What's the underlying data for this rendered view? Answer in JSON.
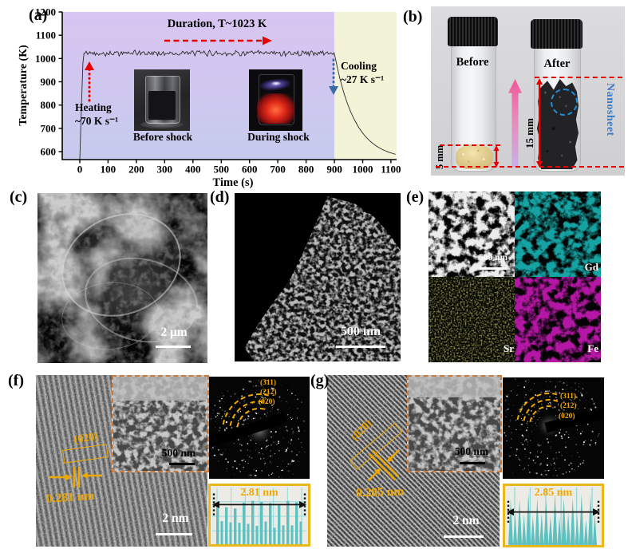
{
  "figure_type": "multi-panel scientific figure (thermal-shock synthesis of GdSrFeO nanosheets)",
  "chart_data": {
    "type": "line",
    "title": "",
    "xlabel": "Time (s)",
    "ylabel": "Temperature (K)",
    "xlim": [
      -62,
      1120
    ],
    "ylim": [
      566,
      1200
    ],
    "xticks": [
      0,
      100,
      200,
      300,
      400,
      500,
      600,
      700,
      800,
      900,
      1000,
      1100
    ],
    "yticks": [
      600,
      700,
      800,
      900,
      1000,
      1100,
      1200
    ],
    "grid": false,
    "legend": null,
    "series": [
      {
        "name": "temperature",
        "color": "#2a2a2a",
        "description": "Rapid heating at ~70 K/s to a noisy plateau at ~1023 K held until ~900 s, then exponential cooling at ~27 K/s back to ~570 K",
        "plateau_temp_K": 1023,
        "plateau_noise_K": 12,
        "heating_rate_K_per_s": 70,
        "cooling_rate_K_per_s": 27,
        "cooling_tau_s": 72,
        "key_points": [
          [
            0,
            566
          ],
          [
            8,
            850
          ],
          [
            15,
            1025
          ],
          [
            100,
            1023
          ],
          [
            300,
            1023
          ],
          [
            500,
            1023
          ],
          [
            700,
            1023
          ],
          [
            900,
            1023
          ],
          [
            950,
            800
          ],
          [
            1000,
            690
          ],
          [
            1050,
            630
          ],
          [
            1100,
            595
          ],
          [
            1118,
            580
          ]
        ]
      }
    ],
    "regions": [
      {
        "name": "shock-duration",
        "x0": -62,
        "x1": 900,
        "color_top": "#d8c5f1",
        "color_bottom": "#c5cbee"
      },
      {
        "name": "cooling",
        "x0": 900,
        "x1": 1120,
        "color": "#f3f3d8"
      }
    ]
  },
  "panels": {
    "a": {
      "label": "(a)",
      "duration_text": "Duration, T~1023 K",
      "heating_text_1": "Heating",
      "heating_text_2": "~70 K s⁻¹",
      "cooling_text_1": "Cooling",
      "cooling_text_2": "~27 K s⁻¹",
      "inset_before_caption": "Before shock",
      "inset_during_caption": "During shock"
    },
    "b": {
      "label": "(b)",
      "vial_left_label": "Before",
      "vial_right_label": "After",
      "height_left": "5 mm",
      "height_right": "15 mm",
      "product_label": "Nanosheet"
    },
    "c": {
      "label": "(c)",
      "scale_bar": "2 μm"
    },
    "d": {
      "label": "(d)",
      "scale_bar": "500 nm"
    },
    "e": {
      "label": "(e)",
      "scale_bar": "500 nm",
      "maps": [
        {
          "element": "Gd",
          "color": "#17a3a3"
        },
        {
          "element": "Sr",
          "color": "#8f9448"
        },
        {
          "element": "Fe",
          "color": "#b518a5"
        }
      ]
    },
    "f": {
      "label": "(f)",
      "plane": "(020)",
      "d_spacing": "0.281 nm",
      "scale_bar": "2 nm",
      "inset_scale_bar": "500 nm",
      "saed_rings": [
        "(311)",
        "(212)",
        "(020)"
      ],
      "profile_width": "2.81 nm"
    },
    "g": {
      "label": "(g)",
      "plane": "(020)",
      "d_spacing": "0.285 nm",
      "scale_bar": "2 nm",
      "inset_scale_bar": "500 nm",
      "saed_rings": [
        "(311)",
        "(212)",
        "(020)"
      ],
      "profile_width": "2.85 nm"
    }
  },
  "colors": {
    "annotation_yellow": "#f0a800",
    "annotation_red": "#e80000",
    "cooling_arrow_blue": "#3a6ca8",
    "nanosheet_blue": "#3a7ac8",
    "inset_border_orange": "#cc7a3a",
    "profile_border": "#e8b81c",
    "profile_bar": "#5fc0c0",
    "profile_grid": "#8fdede"
  }
}
